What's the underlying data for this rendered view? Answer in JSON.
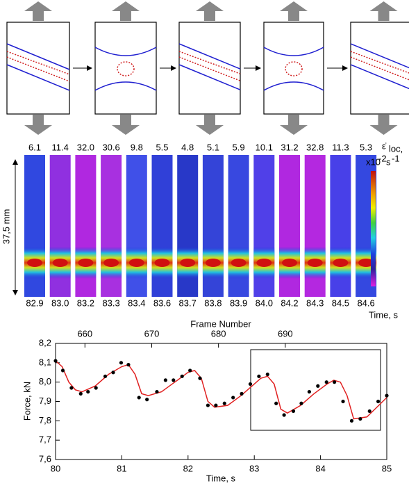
{
  "strip_panel": {
    "top_labels": [
      "6.1",
      "11.4",
      "32.0",
      "30.6",
      "9.8",
      "5.5",
      "4.8",
      "5.1",
      "5.9",
      "10.1",
      "31.2",
      "32.8",
      "11.3",
      "5.3"
    ],
    "bottom_labels": [
      "82.9",
      "83.0",
      "83.2",
      "83.3",
      "83.4",
      "83.6",
      "83.7",
      "83.8",
      "83.9",
      "84.0",
      "84.2",
      "84.3",
      "84.5",
      "84.6"
    ],
    "scale_label": "37,5 mm",
    "time_label": "Time, s",
    "colorbar_symbol": "ε̇",
    "colorbar_subscript": "loc,",
    "colorbar_prefix": "x10",
    "colorbar_exponent": "-2",
    "colorbar_unit": "s",
    "colorbar_unit_exponent": "-1"
  },
  "chart_data": {
    "type": "scatter",
    "xlabel": "Time, s",
    "ylabel": "Force, kN",
    "x2label": "Frame Number",
    "xlim": [
      80,
      85
    ],
    "xticks": [
      80,
      81,
      82,
      83,
      84,
      85
    ],
    "x2lim": [
      655.6,
      705.2
    ],
    "x2ticks": [
      660,
      670,
      680,
      690
    ],
    "ylim": [
      7.6,
      8.2
    ],
    "yticks": [
      {
        "value": 7.6,
        "label": "7,6"
      },
      {
        "value": 7.7,
        "label": "7,7"
      },
      {
        "value": 7.8,
        "label": "7,8"
      },
      {
        "value": 7.9,
        "label": "7,9"
      },
      {
        "value": 8.0,
        "label": "8,0"
      },
      {
        "value": 8.1,
        "label": "8,1"
      },
      {
        "value": 8.2,
        "label": "8,2"
      }
    ],
    "series": [
      {
        "type": "scatter",
        "color": "#000000",
        "x": [
          80.0,
          80.11,
          80.24,
          80.38,
          80.49,
          80.61,
          80.75,
          80.87,
          80.99,
          81.1,
          81.26,
          81.38,
          81.53,
          81.66,
          81.78,
          81.91,
          82.03,
          82.18,
          82.3,
          82.42,
          82.55,
          82.68,
          82.81,
          82.94,
          83.07,
          83.2,
          83.33,
          83.45,
          83.59,
          83.71,
          83.83,
          83.96,
          84.09,
          84.21,
          84.34,
          84.47,
          84.6,
          84.74,
          84.87,
          85.0
        ],
        "values": [
          8.11,
          8.06,
          7.97,
          7.94,
          7.95,
          7.97,
          8.03,
          8.05,
          8.1,
          8.09,
          7.92,
          7.91,
          7.95,
          8.01,
          8.01,
          8.03,
          8.06,
          8.02,
          7.88,
          7.88,
          7.89,
          7.92,
          7.94,
          7.99,
          8.03,
          8.04,
          7.89,
          7.83,
          7.85,
          7.89,
          7.95,
          7.98,
          8.0,
          8.0,
          7.9,
          7.8,
          7.81,
          7.85,
          7.9,
          7.93
        ]
      },
      {
        "type": "line",
        "color": "#e02020",
        "x": [
          80,
          80.1,
          80.2,
          80.3,
          80.4,
          80.6,
          80.8,
          81.0,
          81.1,
          81.2,
          81.3,
          81.4,
          81.6,
          81.8,
          82.0,
          82.1,
          82.2,
          82.3,
          82.4,
          82.6,
          82.8,
          83.0,
          83.1,
          83.2,
          83.3,
          83.4,
          83.5,
          83.7,
          83.9,
          84.1,
          84.2,
          84.3,
          84.4,
          84.5,
          84.7,
          85.0
        ],
        "values": [
          8.11,
          8.08,
          8.0,
          7.96,
          7.95,
          7.98,
          8.04,
          8.08,
          8.09,
          8.04,
          7.94,
          7.93,
          7.95,
          8.0,
          8.05,
          8.06,
          8.02,
          7.9,
          7.87,
          7.88,
          7.93,
          7.99,
          8.02,
          8.03,
          7.99,
          7.86,
          7.84,
          7.88,
          7.94,
          7.99,
          8.01,
          8.0,
          7.93,
          7.81,
          7.82,
          7.92
        ]
      }
    ]
  }
}
